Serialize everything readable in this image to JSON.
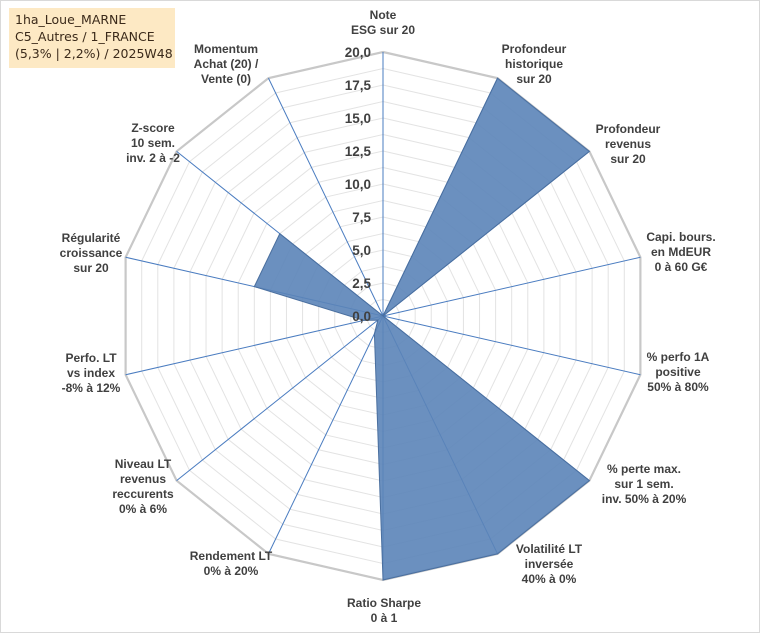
{
  "info": {
    "line1": "1ha_Loue_MARNE",
    "line2": "C5_Autres / 1_FRANCE",
    "line3": "(5,3% | 2,2%) / 2025W48"
  },
  "chart_data": {
    "type": "radar",
    "rmin": 0,
    "rmax": 20,
    "ticks": [
      "0,0",
      "2,5",
      "5,0",
      "7,5",
      "10,0",
      "12,5",
      "15,0",
      "17,5",
      "20,0"
    ],
    "tick_values": [
      0,
      2.5,
      5,
      7.5,
      10,
      12.5,
      15,
      17.5,
      20
    ],
    "grid": true,
    "series_color": "#5b84b8",
    "categories": [
      [
        "Note",
        "ESG sur 20"
      ],
      [
        "Profondeur",
        "historique",
        "sur 20"
      ],
      [
        "Profondeur",
        "revenus",
        "sur 20"
      ],
      [
        "Capi. bours.",
        "en MdEUR",
        "0 à 60 G€"
      ],
      [
        "% perfo 1A",
        "positive",
        "50% à 80%"
      ],
      [
        "% perte max.",
        "sur 1 sem.",
        "inv. 50% à 20%"
      ],
      [
        "Volatilité LT",
        "inversée",
        "40% à 0%"
      ],
      [
        "Ratio Sharpe",
        "0 à 1"
      ],
      [
        "Rendement LT",
        "0% à 20%"
      ],
      [
        "Niveau LT",
        "revenus",
        "reccurents",
        "0% à 6%"
      ],
      [
        "Perfo. LT",
        "vs index",
        "-8% à 12%"
      ],
      [
        "Régularité",
        "croissance",
        "sur 20"
      ],
      [
        "Z-score",
        "10 sem.",
        "inv. 2 à -2"
      ],
      [
        "Momentum",
        "Achat (20) /",
        "Vente (0)"
      ]
    ],
    "values": [
      0,
      20,
      20,
      0,
      0,
      20,
      20,
      20,
      1.5,
      0.5,
      1.5,
      10,
      10,
      0
    ]
  }
}
